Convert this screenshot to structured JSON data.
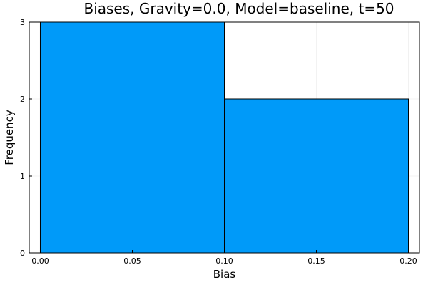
{
  "chart_data": {
    "type": "bar",
    "title": "Biases, Gravity=0.0, Model=baseline, t=50",
    "xlabel": "Bias",
    "ylabel": "Frequency",
    "bins": [
      {
        "start": 0.0,
        "end": 0.1,
        "count": 3
      },
      {
        "start": 0.1,
        "end": 0.2,
        "count": 2
      }
    ],
    "xlim": [
      -0.006,
      0.206
    ],
    "ylim": [
      0,
      3
    ],
    "xticks": [
      {
        "value": 0.0,
        "label": "0.00"
      },
      {
        "value": 0.05,
        "label": "0.05"
      },
      {
        "value": 0.1,
        "label": "0.10"
      },
      {
        "value": 0.15,
        "label": "0.15"
      },
      {
        "value": 0.2,
        "label": "0.20"
      }
    ],
    "yticks": [
      {
        "value": 0,
        "label": "0"
      },
      {
        "value": 1,
        "label": "1"
      },
      {
        "value": 2,
        "label": "2"
      },
      {
        "value": 3,
        "label": "3"
      }
    ],
    "grid": true,
    "legend": false,
    "bar_color": "#009af9",
    "bar_edge_color": "#000000"
  }
}
